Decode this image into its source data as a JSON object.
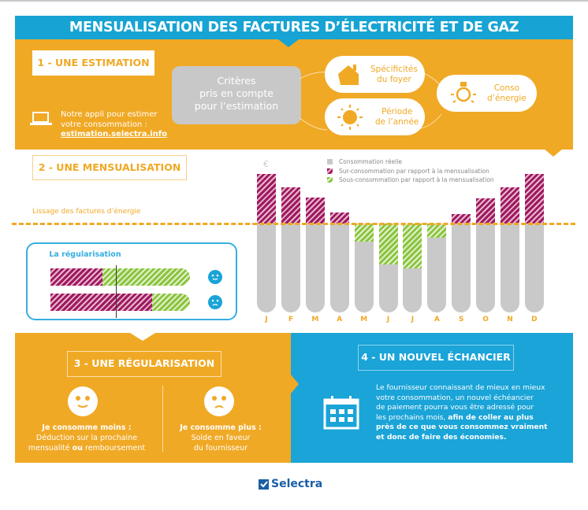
{
  "header": {
    "title": "MENSUALISATION DES FACTURES D’ÉLECTRICITÉ ET DE GAZ"
  },
  "section1": {
    "title": "1 - UNE ESTIMATION",
    "app_text_1": "Notre appli pour estimer",
    "app_text_2": "votre consommation :",
    "app_link": "estimation.selectra.info",
    "criteria_1": "Critères",
    "criteria_2": "pris en compte",
    "criteria_3": "pour l’estimation",
    "pills": [
      {
        "l1": "Spécificités",
        "l2": "du foyer",
        "icon": "house-icon"
      },
      {
        "l1": "Période",
        "l2": "de l’année",
        "icon": "sun-icon"
      },
      {
        "l1": "Conso",
        "l2": "d’énergie",
        "icon": "lightbulb-icon"
      }
    ]
  },
  "section2": {
    "title": "2 - UNE MENSUALISATION",
    "smoothing_label": "Lissage des factures d’énergie",
    "regularisation_title": "La régularisation"
  },
  "chart_data": {
    "type": "bar",
    "ylabel": "€",
    "categories": [
      "J",
      "F",
      "M",
      "A",
      "M",
      "J",
      "J",
      "A",
      "S",
      "O",
      "N",
      "D"
    ],
    "monthly_payment_level": 100,
    "values": [
      156,
      141,
      129,
      112,
      80,
      54,
      50,
      84,
      111,
      128,
      141,
      156
    ],
    "legend": [
      {
        "label": "Consommation réelle",
        "color": "#c9c9c9"
      },
      {
        "label": "Sur-consommation par rapport à la mensualisation",
        "color": "#9e1a5f"
      },
      {
        "label": "Sous-consommation par rapport à la mensualisation",
        "color": "#8cc43f"
      }
    ],
    "legend_position": "top-right",
    "grid": false
  },
  "section3": {
    "title": "3 - UNE RÉGULARISATION",
    "less_title": "Je consomme moins :",
    "less_1": "Déduction sur la prochaine",
    "less_2a": "mensualité ",
    "less_2b": "ou",
    "less_2c": " remboursement",
    "more_title": "Je consomme plus :",
    "more_1": "Solde en faveur",
    "more_2": "du fournisseur"
  },
  "section4": {
    "title": "4 - UN NOUVEL ÉCHANCIER",
    "text_1": "Le fournisseur connaissant de mieux en mieux",
    "text_2": "votre consommation, un nouvel échéancier",
    "text_3": "de paiement pourra vous être adressé pour",
    "text_4": "les prochains mois, ",
    "text_4b": "afin de coller au plus",
    "text_5": "près de ce que vous consommez vraiment",
    "text_6": "et donc de faire des économies."
  },
  "footer": {
    "logo": "Selectra"
  },
  "colors": {
    "blue": "#17a3d3",
    "orange": "#f0a925",
    "magenta": "#9e1a5f",
    "green": "#8cc43f",
    "gray": "#c9c9c9"
  }
}
